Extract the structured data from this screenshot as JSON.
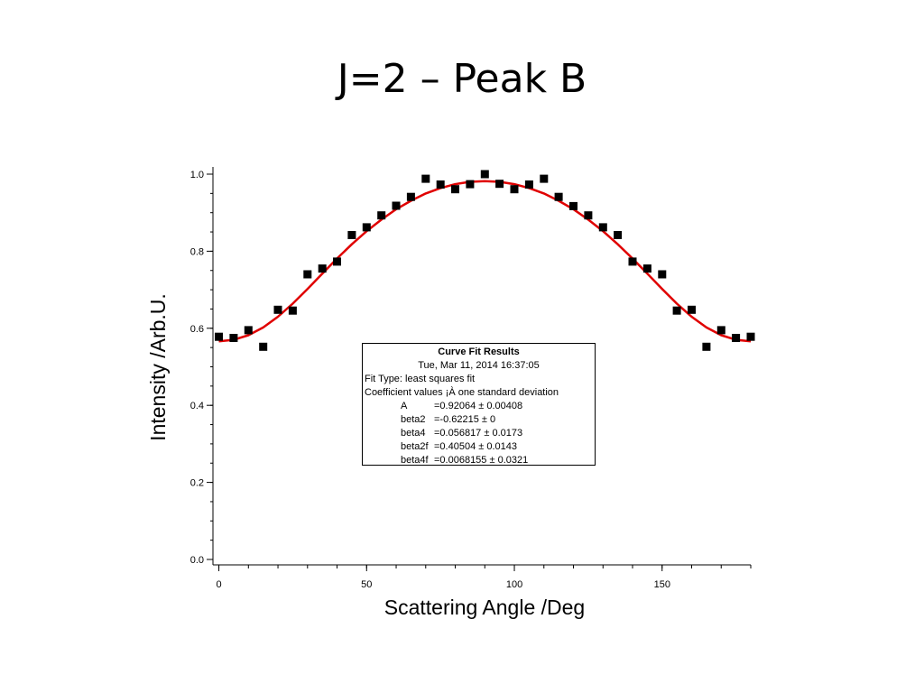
{
  "slide": {
    "title": "J=2 – Peak B"
  },
  "fit_results": {
    "title": "Curve Fit Results",
    "date": "Tue, Mar 11, 2014 16:37:05",
    "fit_type": "Fit Type: least squares fit",
    "coef_header": "Coefficient values ¡À one standard deviation",
    "coefficients": [
      {
        "name": "A",
        "value": "=0.92064 ± 0.00408"
      },
      {
        "name": "beta2",
        "value": "=-0.62215 ± 0"
      },
      {
        "name": "beta4",
        "value": "=0.056817 ± 0.0173"
      },
      {
        "name": "beta2f",
        "value": "=0.40504 ± 0.0143"
      },
      {
        "name": "beta4f",
        "value": "=0.0068155 ± 0.0321"
      }
    ]
  },
  "chart_data": {
    "type": "scatter",
    "xlabel": "Scattering Angle /Deg",
    "ylabel": "Intensity /Arb.U.",
    "xlim": [
      -2,
      180
    ],
    "ylim": [
      0,
      1.0
    ],
    "xticks": [
      0,
      50,
      100,
      150
    ],
    "yticks": [
      0.0,
      0.2,
      0.4,
      0.6,
      0.8,
      1.0
    ],
    "ytick_labels": [
      "0.0",
      "0.2",
      "0.4",
      "0.6",
      "0.8",
      "1.0"
    ],
    "grid": false,
    "series": [
      {
        "type": "scatter",
        "marker": "square",
        "color": "#000000",
        "x": [
          0,
          5,
          10,
          15,
          20,
          25,
          30,
          35,
          40,
          45,
          50,
          55,
          60,
          65,
          70,
          75,
          80,
          85,
          90,
          95,
          100,
          105,
          110,
          115,
          120,
          125,
          130,
          135,
          140,
          145,
          150,
          155,
          160,
          165,
          170,
          175,
          180
        ],
        "y": [
          0.578,
          0.575,
          0.595,
          0.552,
          0.648,
          0.646,
          0.74,
          0.755,
          0.773,
          0.842,
          0.862,
          0.893,
          0.918,
          0.941,
          0.988,
          0.973,
          0.961,
          0.974,
          1.0,
          0.975,
          0.961,
          0.973,
          0.988,
          0.941,
          0.917,
          0.893,
          0.862,
          0.842,
          0.773,
          0.755,
          0.74,
          0.646,
          0.648,
          0.552,
          0.595,
          0.575,
          0.578
        ]
      },
      {
        "type": "line",
        "color": "#e00000",
        "x": [
          0,
          5,
          10,
          15,
          20,
          25,
          30,
          35,
          40,
          45,
          50,
          55,
          60,
          65,
          70,
          75,
          80,
          85,
          90,
          95,
          100,
          105,
          110,
          115,
          120,
          125,
          130,
          135,
          140,
          145,
          150,
          155,
          160,
          165,
          170,
          175,
          180
        ],
        "y": [
          0.566,
          0.57,
          0.582,
          0.602,
          0.63,
          0.664,
          0.702,
          0.742,
          0.781,
          0.818,
          0.852,
          0.882,
          0.909,
          0.931,
          0.95,
          0.964,
          0.974,
          0.98,
          0.982,
          0.98,
          0.974,
          0.964,
          0.95,
          0.931,
          0.909,
          0.882,
          0.852,
          0.818,
          0.781,
          0.742,
          0.702,
          0.664,
          0.63,
          0.602,
          0.582,
          0.57,
          0.566
        ]
      }
    ]
  }
}
